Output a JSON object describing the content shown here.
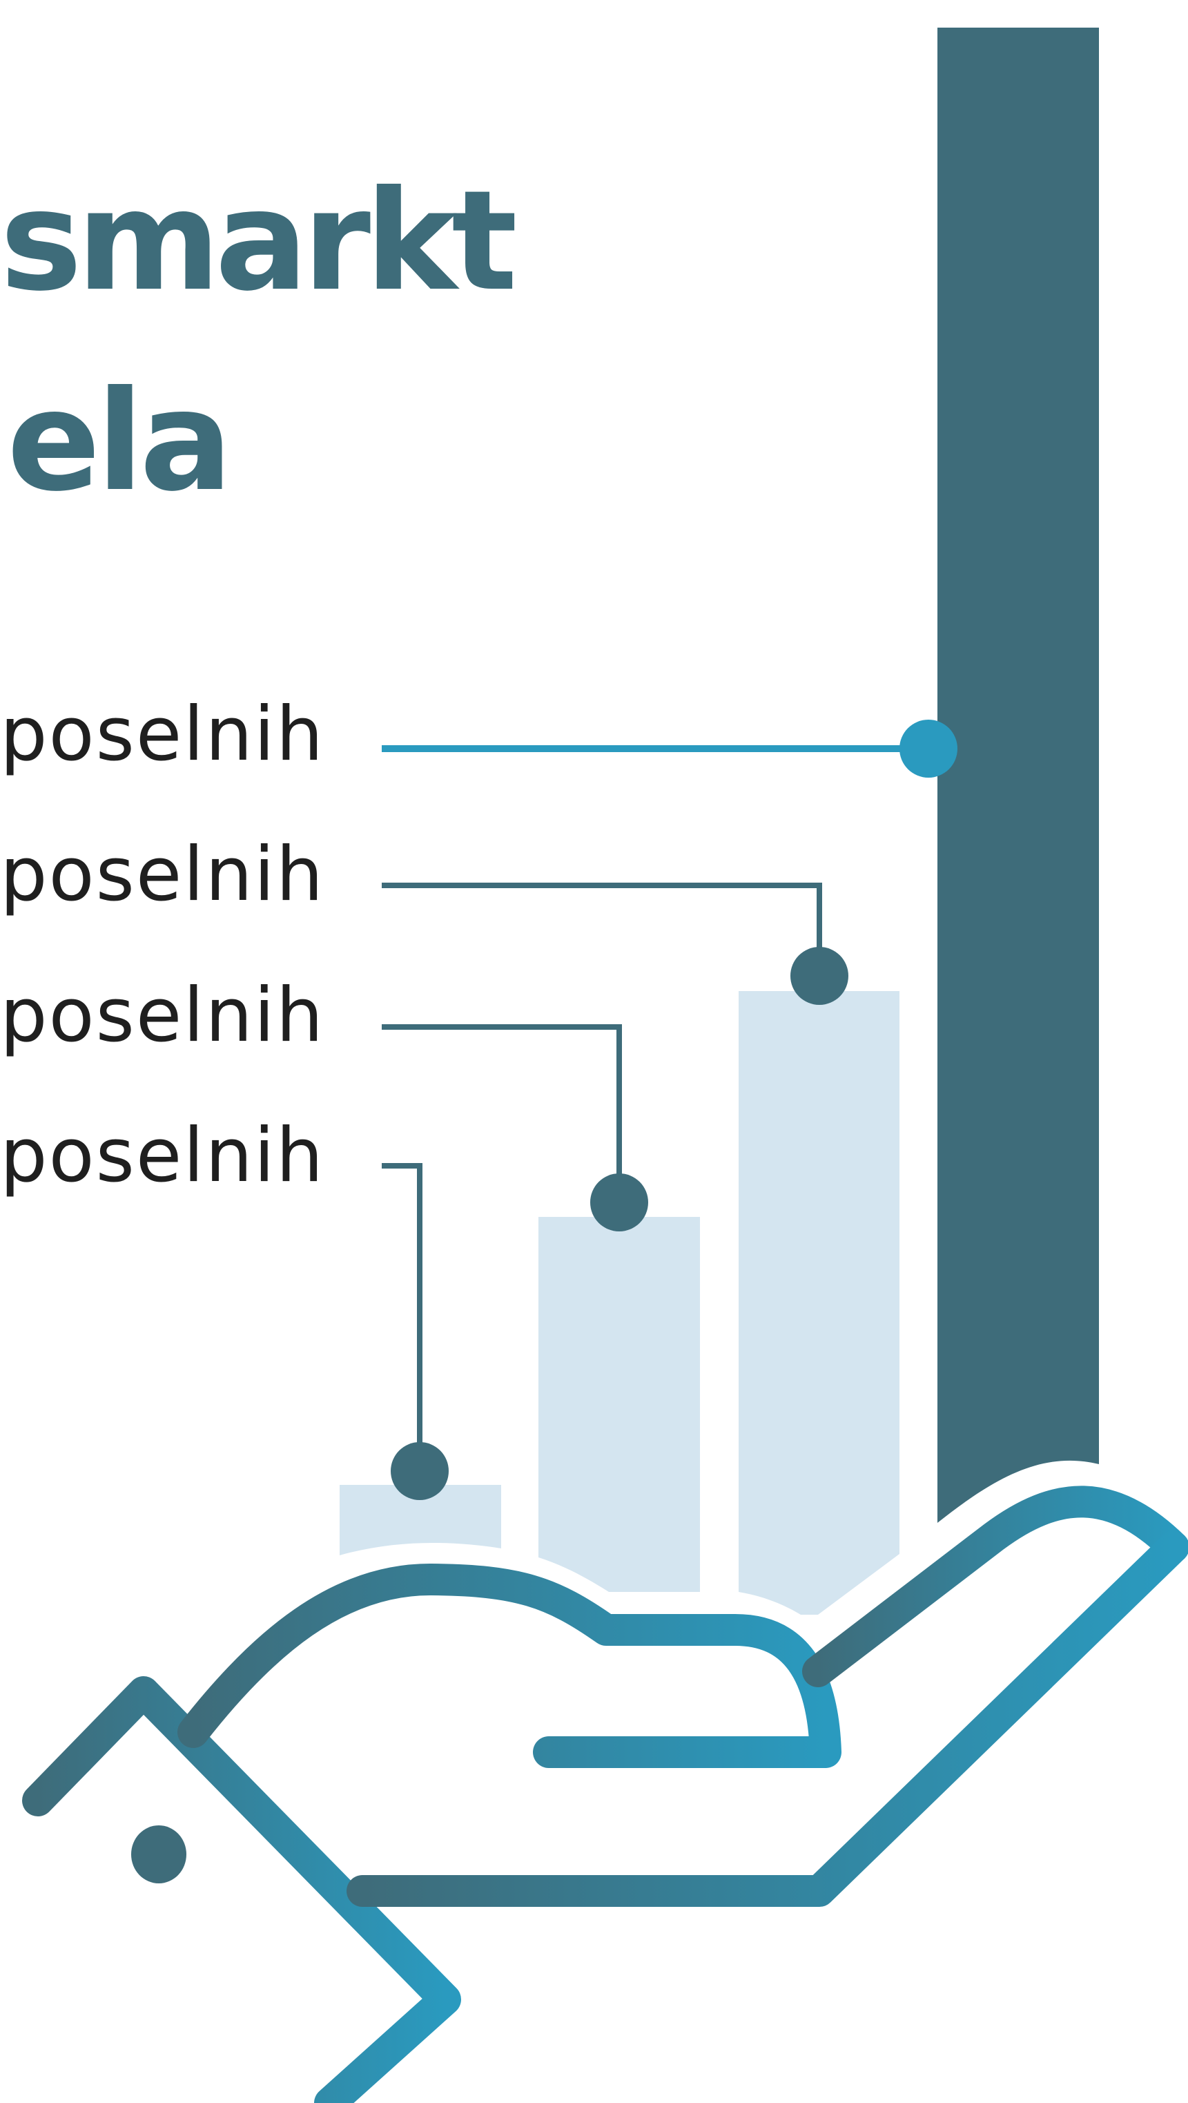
{
  "headline": {
    "line1": "smarkt",
    "line2": "ela"
  },
  "labels": [
    {
      "text": "poselnih"
    },
    {
      "text": "poselnih"
    },
    {
      "text": "poselnih"
    },
    {
      "text": "poselnih"
    }
  ],
  "colors": {
    "dark_teal": "#3e6c7a",
    "bright_blue": "#2a9abf",
    "light_bar": "#d4e5f0",
    "text": "#1f1f1f",
    "background": "#ffffff"
  },
  "icons": [
    "hand-icon",
    "bar-chart-icon",
    "connector-dot-icon"
  ]
}
